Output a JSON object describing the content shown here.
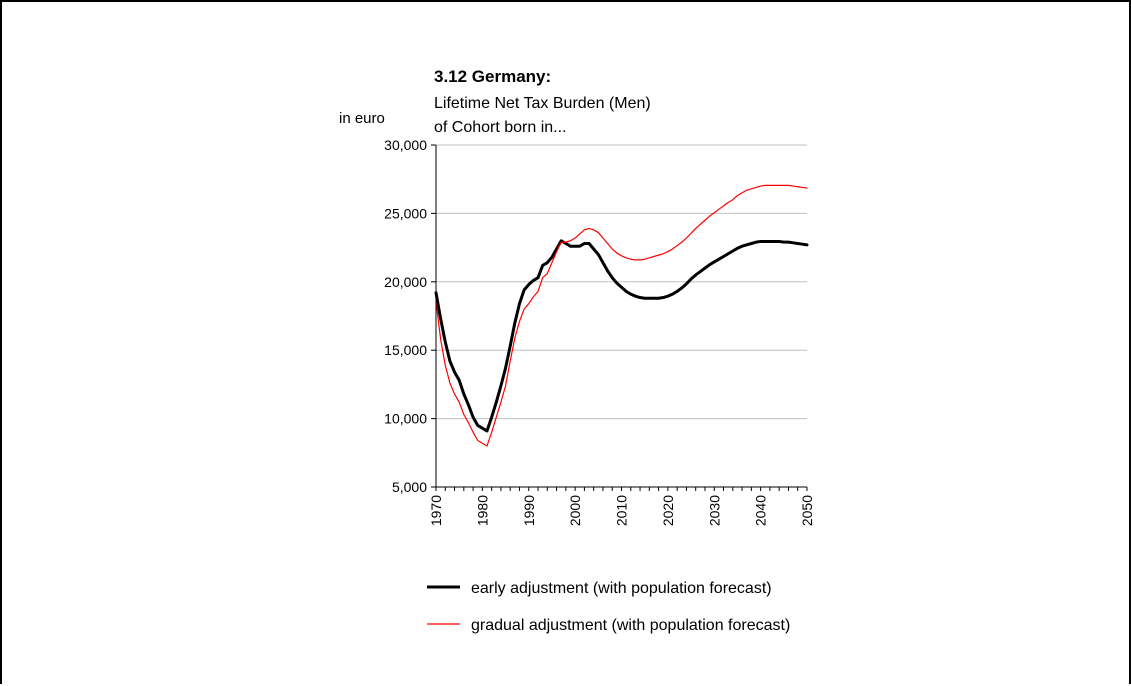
{
  "chart_data": {
    "type": "line",
    "title": "3.12 Germany:",
    "subtitle_lines": [
      "Lifetime Net Tax Burden (Men)",
      "of Cohort born in..."
    ],
    "ylabel": "in euro",
    "xlabel": "",
    "ylim": [
      5000,
      30000
    ],
    "xlim": [
      1970,
      2050
    ],
    "y_ticks": [
      5000,
      10000,
      15000,
      20000,
      25000,
      30000
    ],
    "y_tick_labels": [
      "5,000",
      "10,000",
      "15,000",
      "20,000",
      "25,000",
      "30,000"
    ],
    "x_ticks": [
      1970,
      1980,
      1990,
      2000,
      2010,
      2020,
      2030,
      2040,
      2050
    ],
    "x_tick_labels": [
      "1970",
      "1980",
      "1990",
      "2000",
      "2010",
      "2020",
      "2030",
      "2040",
      "2050"
    ],
    "grid": "horizontal",
    "legend_position": "bottom",
    "series": [
      {
        "name": "early adjustment (with population forecast)",
        "color": "#000000",
        "width": 3,
        "points": [
          [
            1970,
            19200
          ],
          [
            1971,
            17300
          ],
          [
            1972,
            15600
          ],
          [
            1973,
            14200
          ],
          [
            1974,
            13400
          ],
          [
            1975,
            12800
          ],
          [
            1976,
            11800
          ],
          [
            1977,
            11000
          ],
          [
            1978,
            10100
          ],
          [
            1979,
            9500
          ],
          [
            1980,
            9300
          ],
          [
            1981,
            9100
          ],
          [
            1982,
            10100
          ],
          [
            1983,
            11200
          ],
          [
            1984,
            12400
          ],
          [
            1985,
            13700
          ],
          [
            1986,
            15300
          ],
          [
            1987,
            17000
          ],
          [
            1988,
            18400
          ],
          [
            1989,
            19400
          ],
          [
            1990,
            19800
          ],
          [
            1991,
            20100
          ],
          [
            1992,
            20300
          ],
          [
            1993,
            21200
          ],
          [
            1994,
            21400
          ],
          [
            1995,
            21800
          ],
          [
            1996,
            22400
          ],
          [
            1997,
            23000
          ],
          [
            1998,
            22800
          ],
          [
            1999,
            22600
          ],
          [
            2000,
            22600
          ],
          [
            2001,
            22600
          ],
          [
            2002,
            22800
          ],
          [
            2003,
            22800
          ],
          [
            2004,
            22400
          ],
          [
            2005,
            22000
          ],
          [
            2006,
            21400
          ],
          [
            2007,
            20800
          ],
          [
            2008,
            20300
          ],
          [
            2009,
            19900
          ],
          [
            2010,
            19600
          ],
          [
            2011,
            19300
          ],
          [
            2012,
            19100
          ],
          [
            2013,
            18950
          ],
          [
            2014,
            18850
          ],
          [
            2015,
            18800
          ],
          [
            2016,
            18800
          ],
          [
            2017,
            18800
          ],
          [
            2018,
            18800
          ],
          [
            2019,
            18850
          ],
          [
            2020,
            18950
          ],
          [
            2021,
            19100
          ],
          [
            2022,
            19300
          ],
          [
            2023,
            19550
          ],
          [
            2024,
            19850
          ],
          [
            2025,
            20200
          ],
          [
            2026,
            20500
          ],
          [
            2027,
            20750
          ],
          [
            2028,
            21000
          ],
          [
            2029,
            21250
          ],
          [
            2030,
            21450
          ],
          [
            2031,
            21650
          ],
          [
            2032,
            21850
          ],
          [
            2033,
            22050
          ],
          [
            2034,
            22250
          ],
          [
            2035,
            22450
          ],
          [
            2036,
            22600
          ],
          [
            2037,
            22700
          ],
          [
            2038,
            22800
          ],
          [
            2039,
            22900
          ],
          [
            2040,
            22950
          ],
          [
            2041,
            22950
          ],
          [
            2042,
            22950
          ],
          [
            2043,
            22950
          ],
          [
            2044,
            22950
          ],
          [
            2045,
            22900
          ],
          [
            2046,
            22900
          ],
          [
            2047,
            22850
          ],
          [
            2048,
            22800
          ],
          [
            2049,
            22750
          ],
          [
            2050,
            22700
          ]
        ]
      },
      {
        "name": "gradual adjustment (with population forecast)",
        "color": "#ff0000",
        "width": 1.2,
        "points": [
          [
            1970,
            18600
          ],
          [
            1971,
            15800
          ],
          [
            1972,
            13900
          ],
          [
            1973,
            12600
          ],
          [
            1974,
            11800
          ],
          [
            1975,
            11200
          ],
          [
            1976,
            10300
          ],
          [
            1977,
            9700
          ],
          [
            1978,
            9000
          ],
          [
            1979,
            8400
          ],
          [
            1980,
            8200
          ],
          [
            1981,
            8000
          ],
          [
            1982,
            9000
          ],
          [
            1983,
            10100
          ],
          [
            1984,
            11200
          ],
          [
            1985,
            12400
          ],
          [
            1986,
            14200
          ],
          [
            1987,
            15900
          ],
          [
            1988,
            17100
          ],
          [
            1989,
            18000
          ],
          [
            1990,
            18400
          ],
          [
            1991,
            18900
          ],
          [
            1992,
            19300
          ],
          [
            1993,
            20300
          ],
          [
            1994,
            20600
          ],
          [
            1995,
            21400
          ],
          [
            1996,
            22200
          ],
          [
            1997,
            22900
          ],
          [
            1998,
            22900
          ],
          [
            1999,
            23000
          ],
          [
            2000,
            23200
          ],
          [
            2001,
            23500
          ],
          [
            2002,
            23800
          ],
          [
            2003,
            23900
          ],
          [
            2004,
            23800
          ],
          [
            2005,
            23600
          ],
          [
            2006,
            23200
          ],
          [
            2007,
            22800
          ],
          [
            2008,
            22400
          ],
          [
            2009,
            22100
          ],
          [
            2010,
            21900
          ],
          [
            2011,
            21750
          ],
          [
            2012,
            21650
          ],
          [
            2013,
            21600
          ],
          [
            2014,
            21600
          ],
          [
            2015,
            21650
          ],
          [
            2016,
            21750
          ],
          [
            2017,
            21850
          ],
          [
            2018,
            21950
          ],
          [
            2019,
            22050
          ],
          [
            2020,
            22200
          ],
          [
            2021,
            22400
          ],
          [
            2022,
            22650
          ],
          [
            2023,
            22900
          ],
          [
            2024,
            23200
          ],
          [
            2025,
            23550
          ],
          [
            2026,
            23900
          ],
          [
            2027,
            24200
          ],
          [
            2028,
            24500
          ],
          [
            2029,
            24800
          ],
          [
            2030,
            25050
          ],
          [
            2031,
            25300
          ],
          [
            2032,
            25550
          ],
          [
            2033,
            25800
          ],
          [
            2034,
            26000
          ],
          [
            2035,
            26300
          ],
          [
            2036,
            26500
          ],
          [
            2037,
            26700
          ],
          [
            2038,
            26800
          ],
          [
            2039,
            26900
          ],
          [
            2040,
            27000
          ],
          [
            2041,
            27050
          ],
          [
            2042,
            27050
          ],
          [
            2043,
            27050
          ],
          [
            2044,
            27050
          ],
          [
            2045,
            27050
          ],
          [
            2046,
            27050
          ],
          [
            2047,
            27000
          ],
          [
            2048,
            26950
          ],
          [
            2049,
            26900
          ],
          [
            2050,
            26850
          ]
        ]
      }
    ]
  }
}
